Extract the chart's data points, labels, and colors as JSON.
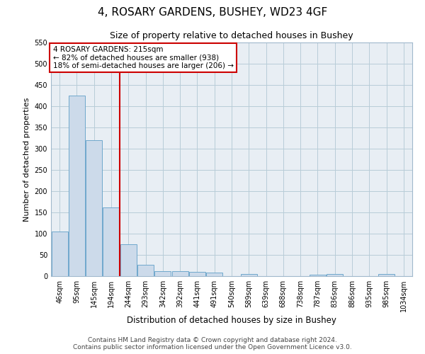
{
  "title": "4, ROSARY GARDENS, BUSHEY, WD23 4GF",
  "subtitle": "Size of property relative to detached houses in Bushey",
  "xlabel": "Distribution of detached houses by size in Bushey",
  "ylabel": "Number of detached properties",
  "bar_labels": [
    "46sqm",
    "95sqm",
    "145sqm",
    "194sqm",
    "244sqm",
    "293sqm",
    "342sqm",
    "392sqm",
    "441sqm",
    "491sqm",
    "540sqm",
    "589sqm",
    "639sqm",
    "688sqm",
    "738sqm",
    "787sqm",
    "836sqm",
    "886sqm",
    "935sqm",
    "985sqm",
    "1034sqm"
  ],
  "bar_values": [
    105,
    425,
    320,
    162,
    75,
    27,
    12,
    12,
    10,
    8,
    0,
    5,
    0,
    0,
    0,
    4,
    5,
    0,
    0,
    5,
    0
  ],
  "bar_color": "#ccdaea",
  "bar_edge_color": "#6fa8cc",
  "vline_color": "#cc0000",
  "vline_pos": 3.5,
  "ylim": [
    0,
    550
  ],
  "yticks": [
    0,
    50,
    100,
    150,
    200,
    250,
    300,
    350,
    400,
    450,
    500,
    550
  ],
  "annotation_title": "4 ROSARY GARDENS: 215sqm",
  "annotation_line1": "← 82% of detached houses are smaller (938)",
  "annotation_line2": "18% of semi-detached houses are larger (206) →",
  "annotation_box_color": "#cc0000",
  "footer_line1": "Contains HM Land Registry data © Crown copyright and database right 2024.",
  "footer_line2": "Contains public sector information licensed under the Open Government Licence v3.0.",
  "bg_color": "#e8eef4",
  "grid_color": "#b8ccd8",
  "title_fontsize": 11,
  "subtitle_fontsize": 9,
  "ylabel_fontsize": 8,
  "xlabel_fontsize": 8.5,
  "tick_fontsize": 7,
  "annotation_fontsize": 7.5,
  "footer_fontsize": 6.5
}
